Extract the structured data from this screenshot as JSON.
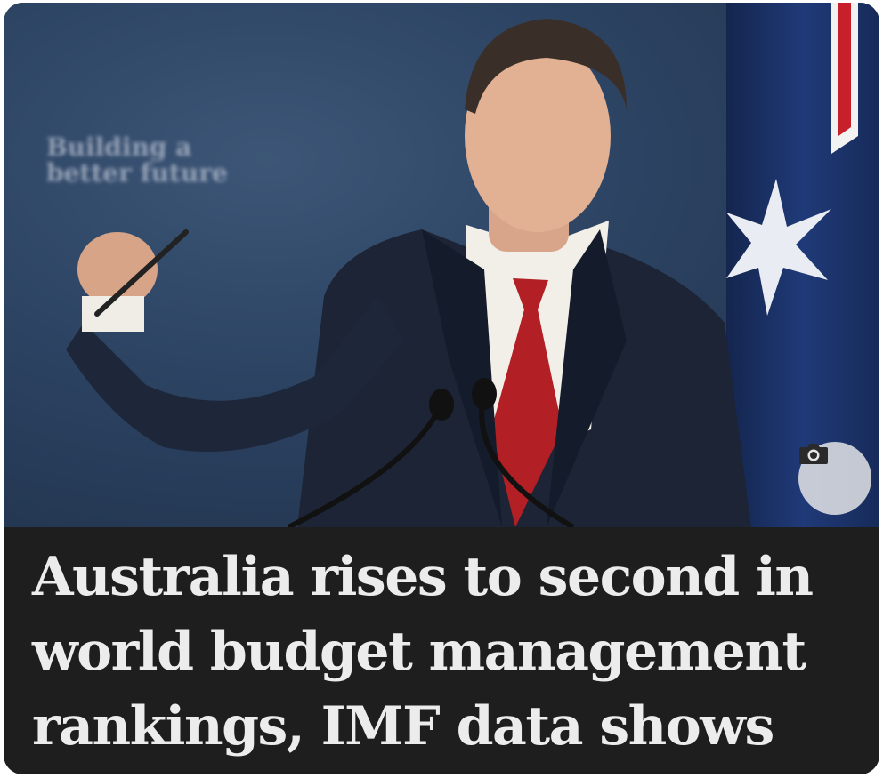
{
  "article": {
    "headline": "Australia rises to second in world budget management rankings, IMF data shows"
  },
  "photo": {
    "description_icon": "camera-icon",
    "backdrop_text_left": "Building a\nbetter future"
  },
  "colors": {
    "backdrop_blue": "#2b4261",
    "headline_bg": "#1e1e1e",
    "headline_text": "#ececec",
    "tie_red": "#b21f24",
    "suit_navy": "#1c2436"
  }
}
